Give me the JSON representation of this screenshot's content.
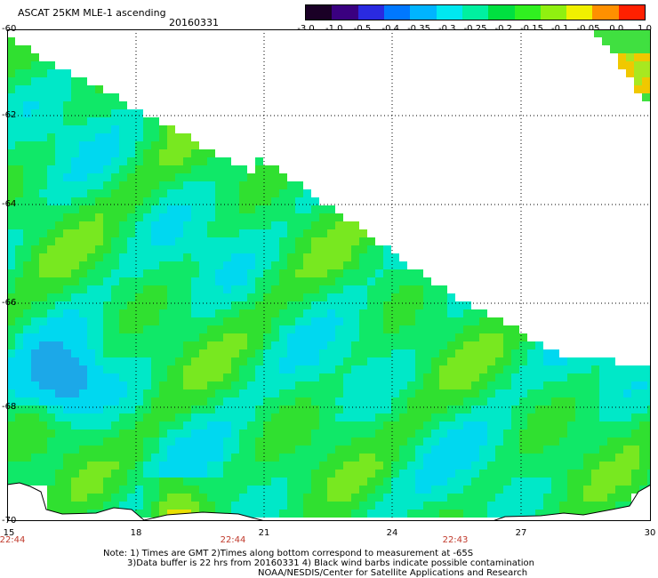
{
  "header": {
    "title": "ASCAT 25KM MLE-1 ascending",
    "date": "20160331"
  },
  "colorbar": {
    "labels": [
      "-3.0",
      "-1.0",
      "-0.5",
      "-0.4",
      "-0.35",
      "-0.3",
      "-0.25",
      "-0.2",
      "-0.15",
      "-0.1",
      "-0.05",
      "0.0",
      "1.0"
    ],
    "colors": [
      "#1a0026",
      "#3a0080",
      "#2a2ae0",
      "#0078ff",
      "#00b4ff",
      "#00e8f0",
      "#00f0a0",
      "#00e040",
      "#30f020",
      "#90f010",
      "#f0f000",
      "#ff9000",
      "#ff2000"
    ]
  },
  "map": {
    "lat_labels": [
      "-60",
      "-62",
      "-64",
      "-66",
      "-68",
      "-70"
    ],
    "lon_labels": [
      "15",
      "18",
      "21",
      "24",
      "27",
      "30"
    ],
    "time_labels": [
      "22:44",
      "22:44",
      "22:43"
    ],
    "background": "#ffffff",
    "grid_color": "#000000",
    "coast_color": "#000000"
  },
  "notes": {
    "line1": "Note: 1) Times are GMT 2)Times along bottom correspond to measurement at -65S",
    "line2": "3)Data buffer is 22 hrs from 20160331 4) Black wind barbs indicate possible contamination",
    "line3": "NOAA/NESDIS/Center for Satellite Applications and Research"
  }
}
